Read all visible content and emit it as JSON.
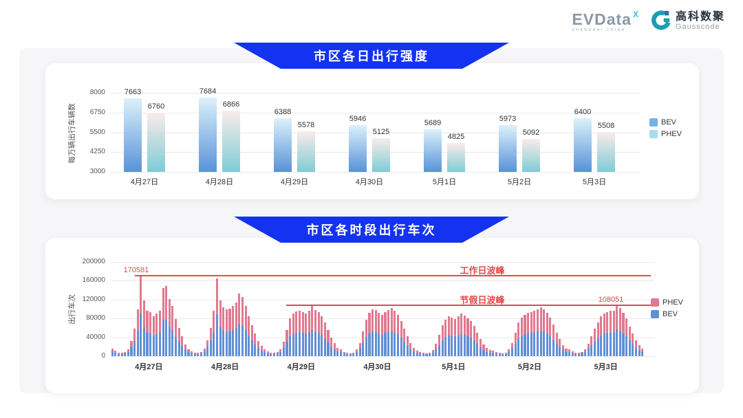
{
  "header": {
    "evdata_logo": {
      "text": "EVData",
      "sup": "X",
      "subtext": "SHANGHAI CHINA"
    },
    "gausscode_logo": {
      "cn": "高科数聚",
      "en": "Gausscode"
    }
  },
  "colors": {
    "banner_blue": "#1433f0",
    "bev_bar_top": "#dcf1fb",
    "bev_bar_bottom": "#5892d8",
    "phev_bar_top": "#f9ece9",
    "phev_bar_bottom": "#7fccd6",
    "legend_bev_1": "#74b1e8",
    "legend_phev_1": "#a6dcec",
    "bev_2": "#608fd6",
    "phev_2": "#e0798f",
    "annotation_red": "#e14b4b"
  },
  "chart_data": [
    {
      "type": "bar",
      "title": "市区各日出行强度",
      "ylabel": "每万辆出行车辆数",
      "ymin": 3000,
      "ymax": 8000,
      "yticks": [
        3000,
        4250,
        5500,
        6750,
        8000
      ],
      "grid": true,
      "legend_position": "right",
      "categories": [
        "4月27日",
        "4月28日",
        "4月29日",
        "4月30日",
        "5月1日",
        "5月2日",
        "5月3日"
      ],
      "series": [
        {
          "name": "BEV",
          "values": [
            7663,
            7684,
            6388,
            5946,
            5689,
            5973,
            6400
          ]
        },
        {
          "name": "PHEV",
          "values": [
            6760,
            6866,
            5578,
            5125,
            4825,
            5092,
            5508
          ]
        }
      ],
      "legend": [
        "BEV",
        "PHEV"
      ]
    },
    {
      "type": "stacked-bar",
      "title": "市区各时段出行车次",
      "ylabel": "出行车次",
      "ymin": 0,
      "ymax": 200000,
      "yticks": [
        0,
        40000,
        80000,
        120000,
        160000,
        200000
      ],
      "grid": true,
      "legend_position": "right",
      "categories": [
        "4月27日",
        "4月28日",
        "4月29日",
        "4月30日",
        "5月1日",
        "5月2日",
        "5月3日"
      ],
      "x_unit": "hour 0-23 per day",
      "series": [
        {
          "name": "BEV",
          "values_by_day": [
            [
              10000,
              7000,
              5000,
              4500,
              5500,
              9000,
              19000,
              32000,
              52000,
              91000,
              62000,
              50000,
              48000,
              44000,
              47000,
              50000,
              76000,
              78000,
              63000,
              55000,
              41000,
              31000,
              22000,
              14000
            ],
            [
              9000,
              6000,
              5000,
              4500,
              5500,
              10000,
              20000,
              33000,
              50000,
              88000,
              62000,
              54000,
              51000,
              52000,
              55000,
              59000,
              69000,
              65000,
              55000,
              44000,
              34000,
              25000,
              17000,
              12000
            ],
            [
              9000,
              6000,
              5000,
              4500,
              5500,
              9000,
              18000,
              30000,
              42000,
              47000,
              50000,
              51000,
              49000,
              47000,
              50000,
              56000,
              51000,
              49000,
              44000,
              37000,
              29000,
              21000,
              15000,
              10000
            ],
            [
              8500,
              5500,
              4300,
              3700,
              5000,
              8500,
              17000,
              28000,
              41000,
              48000,
              52000,
              51000,
              48000,
              45000,
              49000,
              51000,
              53000,
              50000,
              46000,
              39000,
              30000,
              22000,
              15000,
              10000
            ],
            [
              7500,
              5500,
              4300,
              3700,
              5000,
              8000,
              16000,
              24000,
              34000,
              41000,
              44000,
              43000,
              41000,
              44000,
              47000,
              45000,
              42000,
              39000,
              33000,
              26000,
              19000,
              13000,
              9000,
              7000
            ],
            [
              7500,
              5500,
              4300,
              3700,
              5000,
              8500,
              17000,
              27000,
              38000,
              43000,
              46000,
              48000,
              49000,
              50000,
              52000,
              54000,
              52000,
              48000,
              43000,
              35000,
              26000,
              19000,
              13000,
              9000
            ],
            [
              8500,
              6000,
              5000,
              4300,
              5500,
              9000,
              16000,
              23000,
              31000,
              38000,
              44000,
              48000,
              49000,
              50000,
              51000,
              57000,
              54000,
              48000,
              42000,
              33000,
              25000,
              18000,
              13000,
              9000
            ]
          ]
        },
        {
          "name": "PHEV",
          "values_by_day": [
            [
              6000,
              4000,
              3000,
              2500,
              3500,
              6000,
              13000,
              26000,
              48000,
              79581,
              56000,
              46000,
              45000,
              41000,
              43000,
              46000,
              69000,
              71000,
              58000,
              51000,
              38000,
              29000,
              20000,
              11000
            ],
            [
              6000,
              4000,
              3000,
              2500,
              3500,
              6000,
              14000,
              27000,
              46000,
              77000,
              56000,
              50000,
              48000,
              49000,
              51000,
              55000,
              64000,
              61000,
              51000,
              41000,
              31000,
              23000,
              15000,
              10000
            ],
            [
              6000,
              4000,
              3000,
              2500,
              3500,
              6000,
              12000,
              25000,
              38000,
              43000,
              45000,
              46000,
              44000,
              43000,
              46000,
              51000,
              47000,
              44000,
              41000,
              35000,
              26000,
              19000,
              13000,
              8000
            ],
            [
              5500,
              3500,
              2700,
              2300,
              3000,
              5500,
              11000,
              24000,
              37000,
              44000,
              48000,
              47000,
              44000,
              42000,
              45000,
              47000,
              49000,
              46000,
              42000,
              36000,
              28000,
              20000,
              13000,
              8000
            ],
            [
              4500,
              3500,
              2700,
              2300,
              3000,
              5000,
              10000,
              21000,
              31000,
              37000,
              40000,
              39000,
              38000,
              40000,
              43000,
              41000,
              38000,
              35000,
              31000,
              24000,
              17000,
              12000,
              8000,
              6000
            ],
            [
              4500,
              3500,
              2700,
              2300,
              3000,
              5500,
              11000,
              23000,
              34000,
              39000,
              42000,
              44000,
              45000,
              46000,
              48000,
              50000,
              47000,
              44000,
              39000,
              32000,
              24000,
              17000,
              11000,
              7000
            ],
            [
              5500,
              4000,
              3000,
              2700,
              3500,
              6000,
              10000,
              19000,
              27000,
              34000,
              40000,
              43000,
              45000,
              46000,
              46000,
              51051,
              48000,
              44000,
              38000,
              30000,
              23000,
              16000,
              11000,
              7000
            ]
          ]
        }
      ],
      "legend": [
        "PHEV",
        "BEV"
      ],
      "annotations": {
        "lines": [
          {
            "name": "workday-peak",
            "label": "工作日波峰",
            "value": 170581,
            "value_label": "170581"
          },
          {
            "name": "holiday-peak",
            "label": "节假日波峰",
            "value": 108051,
            "value_label": "108051"
          }
        ]
      }
    }
  ]
}
